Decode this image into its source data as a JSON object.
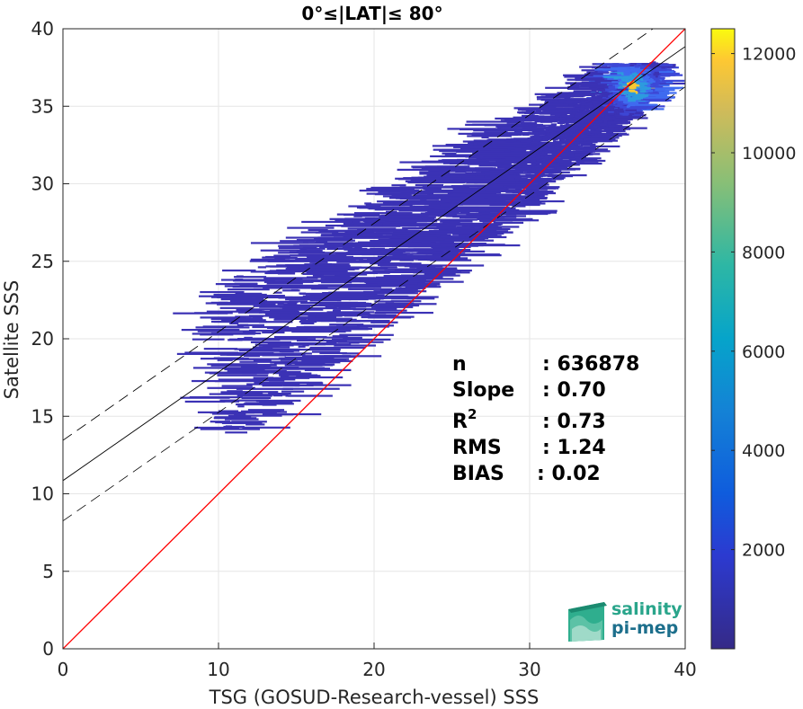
{
  "chart_data": {
    "type": "heatmap",
    "title": "0°≤|LAT|≤ 80°",
    "xlabel": "TSG (GOSUD-Research-vessel) SSS",
    "ylabel": "Satellite SSS",
    "xlim": [
      0,
      40
    ],
    "ylim": [
      0,
      40
    ],
    "xticks": [
      "0",
      "10",
      "20",
      "30",
      "40"
    ],
    "yticks": [
      "0",
      "5",
      "10",
      "15",
      "20",
      "25",
      "30",
      "35",
      "40"
    ],
    "grid": true,
    "colorbar": {
      "range": [
        0,
        12500
      ],
      "ticks": [
        "2000",
        "4000",
        "6000",
        "8000",
        "10000",
        "12000"
      ],
      "colormap": "parula"
    },
    "fit_lines": {
      "one_to_one": {
        "slope": 1,
        "intercept": 0,
        "color": "#ff0000"
      },
      "regression": {
        "slope": 0.7,
        "intercept": 10.85,
        "color": "#000000"
      },
      "upper_bound": {
        "slope": 0.7,
        "intercept": 13.45,
        "style": "dashed"
      },
      "lower_bound": {
        "slope": 0.7,
        "intercept": 8.25,
        "style": "dashed"
      }
    },
    "stats": {
      "n_label": "n",
      "n_value": ": 636878",
      "slope_label": "Slope",
      "slope_value": ": 0.70",
      "r2_label": "R",
      "r2_sup": "2",
      "r2_value": ": 0.73",
      "rms_label": "RMS",
      "rms_value": ": 1.24",
      "bias_label": "BIAS",
      "bias_value": ": 0.02"
    },
    "density_distribution": {
      "x_range": [
        9.5,
        38
      ],
      "y_range": [
        14,
        38
      ],
      "peak": {
        "x": 36.5,
        "y": 36.3,
        "count": 12000
      }
    }
  },
  "logo": {
    "line1": "salinity",
    "line2": "pi-mep"
  }
}
